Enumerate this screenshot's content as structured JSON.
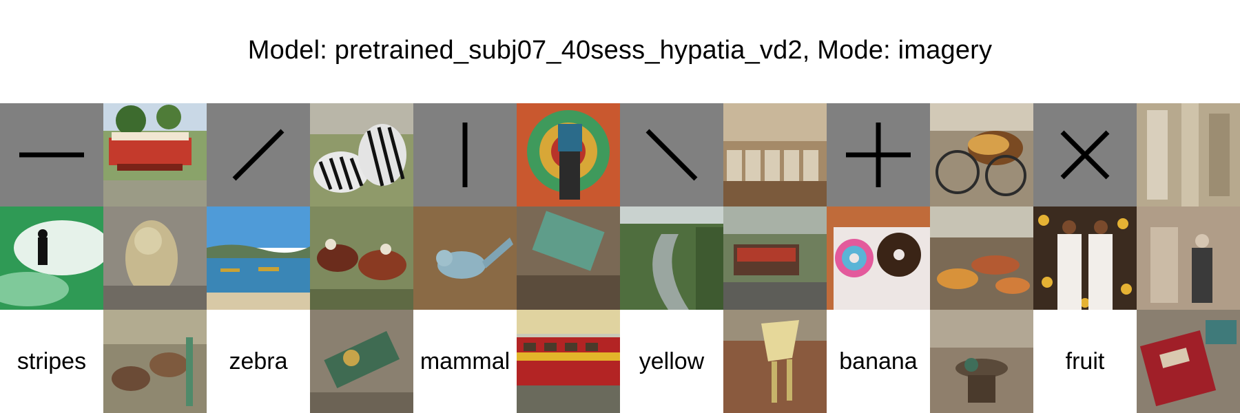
{
  "title": "Model: pretrained_subj07_40sess_hypatia_vd2, Mode: imagery",
  "glyph_row": [
    {
      "glyph": "horizontal-line-icon"
    },
    {
      "glyph": "diagonal-up-line-icon"
    },
    {
      "glyph": "vertical-line-icon"
    },
    {
      "glyph": "diagonal-down-line-icon"
    },
    {
      "glyph": "plus-icon"
    },
    {
      "glyph": "cross-icon"
    }
  ],
  "word_row": [
    "stripes",
    "zebra",
    "mammal",
    "yellow",
    "banana",
    "fruit"
  ],
  "images": {
    "row1": [
      "circus-wagon-image",
      "zebras-image",
      "colorful-cart-image",
      "barrels-image",
      "rickshaw-image",
      "statue-image"
    ],
    "row2": [
      "surfer-image",
      "ornate-figure-image",
      "lake-boats-image",
      "carousel-animals-image",
      "bird-image",
      "teal-bench-image",
      "river-valley-image",
      "street-cart-image",
      "donuts-image",
      "pastries-image",
      "floral-dress-image",
      "abstract-figure-image"
    ],
    "row3": [
      "calves-image",
      "tilted-machine-image",
      "train-image",
      "wooden-chair-image",
      "dog-sculpture-image",
      "red-device-image"
    ]
  },
  "colors": {
    "background": "#ffffff",
    "glyph_panel": "#808080",
    "glyph_stroke": "#000000"
  }
}
